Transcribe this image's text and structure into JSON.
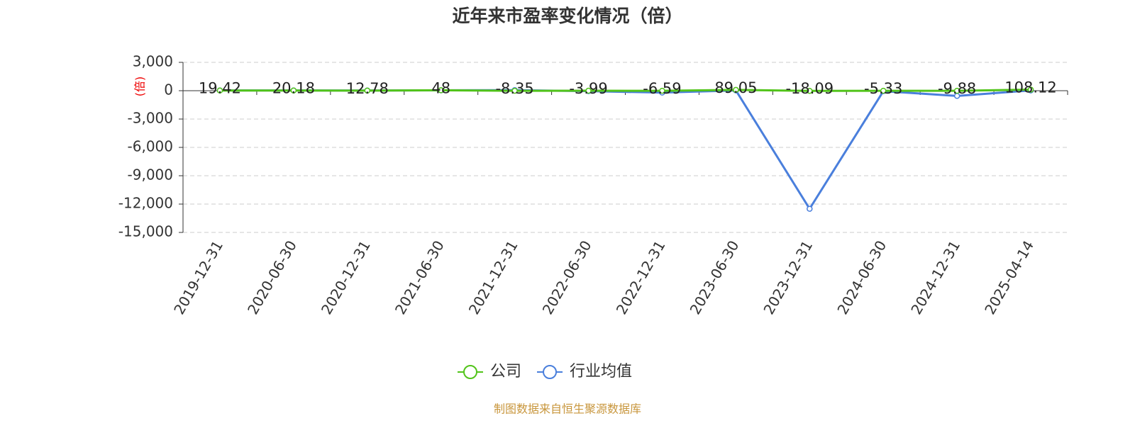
{
  "chart_data": {
    "type": "line",
    "title": "近年来市盈率变化情况（倍）",
    "y_label": "(倍)",
    "source": "制图数据来自恒生聚源数据库",
    "categories": [
      "2019-12-31",
      "2020-06-30",
      "2020-12-31",
      "2021-06-30",
      "2021-12-31",
      "2022-06-30",
      "2022-12-31",
      "2023-06-30",
      "2023-12-31",
      "2024-06-30",
      "2024-12-31",
      "2025-04-14"
    ],
    "series": [
      {
        "name": "公司",
        "color": "#52c41a",
        "values": [
          19.42,
          20.18,
          12.78,
          48,
          -8.35,
          -3.99,
          -6.59,
          89.05,
          -18.09,
          -5.33,
          -9.88,
          108.12
        ]
      },
      {
        "name": "行业均值",
        "color": "#4a7fdc",
        "values": [
          30,
          25,
          20,
          40,
          60,
          -50,
          -200,
          30,
          -12500,
          -50,
          -550,
          30
        ]
      }
    ],
    "ylim": [
      -15000,
      3000
    ],
    "yticks": [
      {
        "value": 3000,
        "label": "3,000"
      },
      0,
      {
        "value": -3000,
        "label": "-3,000"
      },
      {
        "value": -6000,
        "label": "-6,000"
      },
      {
        "value": -9000,
        "label": "-9,000"
      },
      {
        "value": -12000,
        "label": "-12,000"
      },
      {
        "value": -15000,
        "label": "-15,000"
      }
    ],
    "grid": true
  }
}
